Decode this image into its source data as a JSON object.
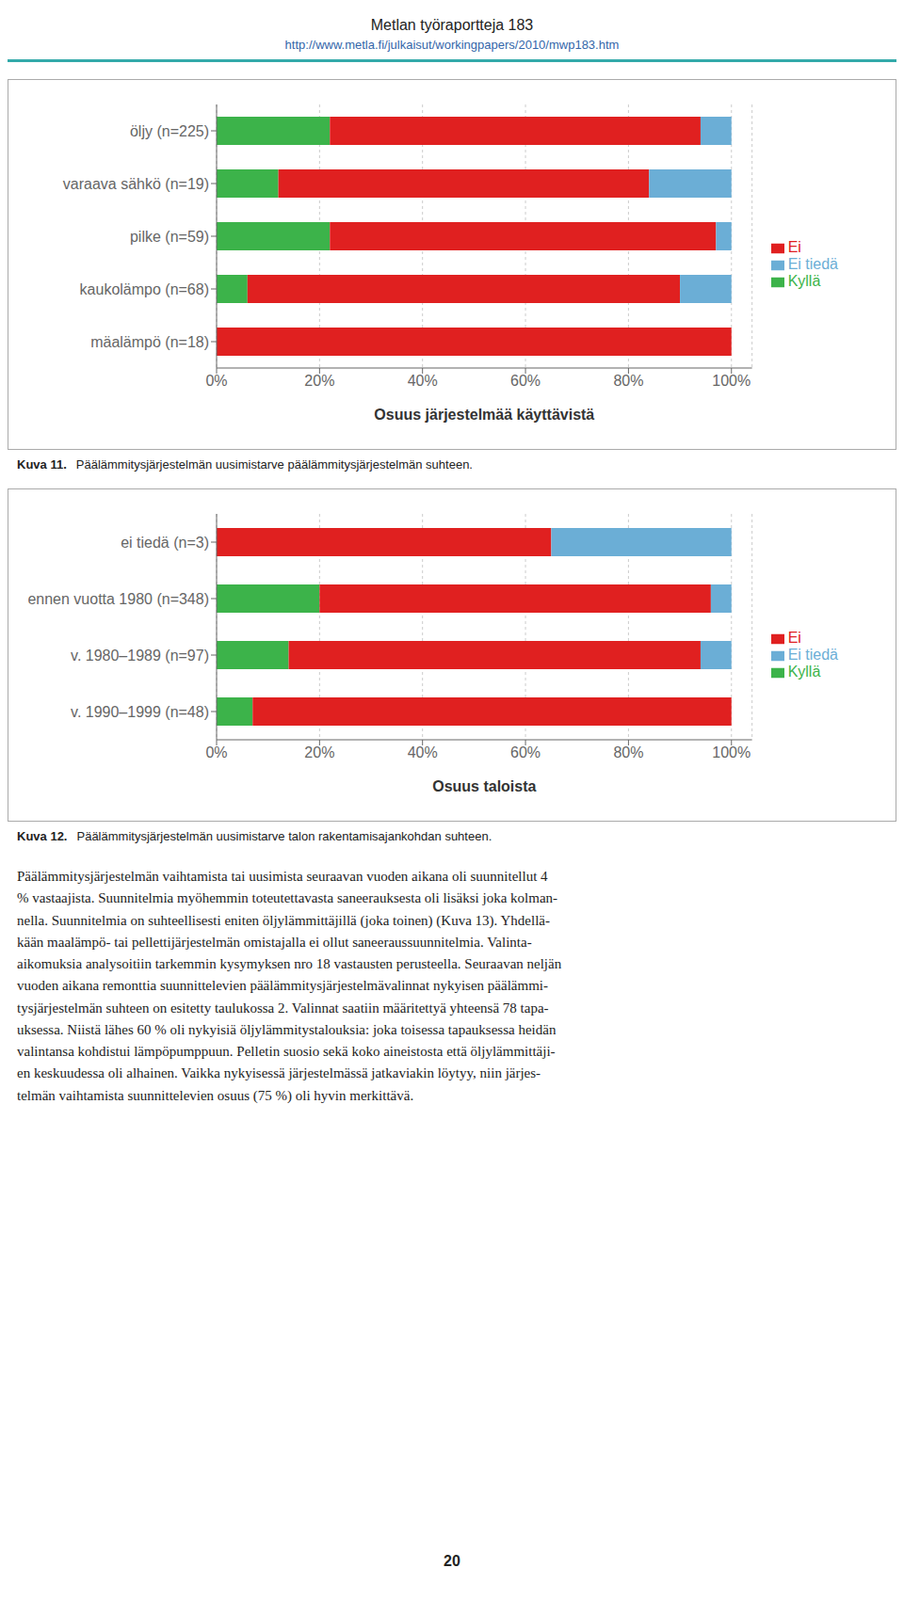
{
  "title": "Metlan työraportteja 183",
  "subtitle": "http://www.metla.fi/julkaisut/workingpapers/2010/mwp183.htm",
  "chart_data": [
    {
      "type": "bar",
      "orientation": "horizontal",
      "stacked": true,
      "categories": [
        "mäalämpö (n=18)",
        "kaukolämpo (n=68)",
        "pilke (n=59)",
        "varaava sähkö (n=19)",
        "öljy (n=225)"
      ],
      "series": [
        {
          "name": "Kyllä",
          "color": "#3CB34A",
          "values": [
            0,
            6,
            22,
            12,
            22
          ]
        },
        {
          "name": "Ei",
          "color": "#E02020",
          "values": [
            100,
            84,
            75,
            72,
            72
          ]
        },
        {
          "name": "Ei tiedä",
          "color": "#6BAED6",
          "values": [
            0,
            10,
            3,
            16,
            6
          ]
        }
      ],
      "xlabel": "Osuus järjestelmää käyttävistä",
      "xlim": [
        0,
        104
      ],
      "xticks": [
        {
          "value": 0,
          "label": "0%"
        },
        {
          "value": 20,
          "label": "20%"
        },
        {
          "value": 40,
          "label": "40%"
        },
        {
          "value": 60,
          "label": "60%"
        },
        {
          "value": 80,
          "label": "80%"
        },
        {
          "value": 100,
          "label": "100%"
        }
      ],
      "grid": true,
      "legend": "right",
      "annotations": [
        "Kuva 11.",
        "Päälämmitysjärjestelmän uusimistarve päälämmitysjärjestelmän suhteen."
      ]
    },
    {
      "type": "bar",
      "orientation": "horizontal",
      "stacked": true,
      "categories": [
        "v. 1990–1999 (n=48)",
        "v. 1980–1989 (n=97)",
        "ennen vuotta 1980 (n=348)",
        "ei tiedä (n=3)"
      ],
      "series": [
        {
          "name": "Kyllä",
          "color": "#3CB34A",
          "values": [
            7,
            14,
            20,
            0
          ]
        },
        {
          "name": "Ei",
          "color": "#E02020",
          "values": [
            93,
            80,
            76,
            65
          ]
        },
        {
          "name": "Ei tiedä",
          "color": "#6BAED6",
          "values": [
            0,
            6,
            4,
            35
          ]
        }
      ],
      "xlabel": "Osuus taloista",
      "xlim": [
        0,
        104
      ],
      "xticks": [
        {
          "value": 0,
          "label": "0%"
        },
        {
          "value": 20,
          "label": "20%"
        },
        {
          "value": 40,
          "label": "40%"
        },
        {
          "value": 60,
          "label": "60%"
        },
        {
          "value": 80,
          "label": "80%"
        },
        {
          "value": 100,
          "label": "100%"
        }
      ],
      "grid": true,
      "legend": "right",
      "annotations": [
        "Kuva 12.",
        "Päälämmitysjärjestelmän uusimistarve talon rakentamisajankohdan suhteen."
      ]
    }
  ],
  "annotations": [
    "Päälämmitysjärjestelmän vaihtamista tai uusimista seuraavan vuoden aikana oli suunnitellut 4",
    "% vastaajista. Suunnitelmia myöhemmin toteutettavasta saneerauksesta oli lisäksi joka kolman-",
    "nella. Suunnitelmia on suhteellisesti eniten öljylämmittäjillä (joka toinen) (Kuva 13). Yhdellä-",
    "kään maalämpö- tai pellettijärjestelmän omistajalla ei ollut saneeraussuunnitelmia. Valinta-",
    "aikomuksia analysoitiin tarkemmin kysymyksen nro 18 vastausten perusteella. Seuraavan neljän",
    "vuoden aikana remonttia suunnittelevien päälämmitysjärjestelmävalinnat nykyisen päälämmi-",
    "tysjärjestelmän suhteen on esitetty taulukossa 2. Valinnat saatiin määritettyä yhteensä 78 tapa-",
    "uksessa. Niistä lähes 60 % oli nykyisiä öljylämmitystalouksia: joka toisessa tapauksessa heidän",
    "valintansa kohdistui lämpöpumppuun. Pelletin suosio sekä koko aineistosta että öljylämmittäji-",
    "en keskuudessa oli alhainen. Vaikka nykyisessä järjestelmässä jatkaviakin löytyy, niin järjes-",
    "telmän vaihtamista suunnittelevien osuus (75 %) oli hyvin merkittävä.",
    "20"
  ]
}
